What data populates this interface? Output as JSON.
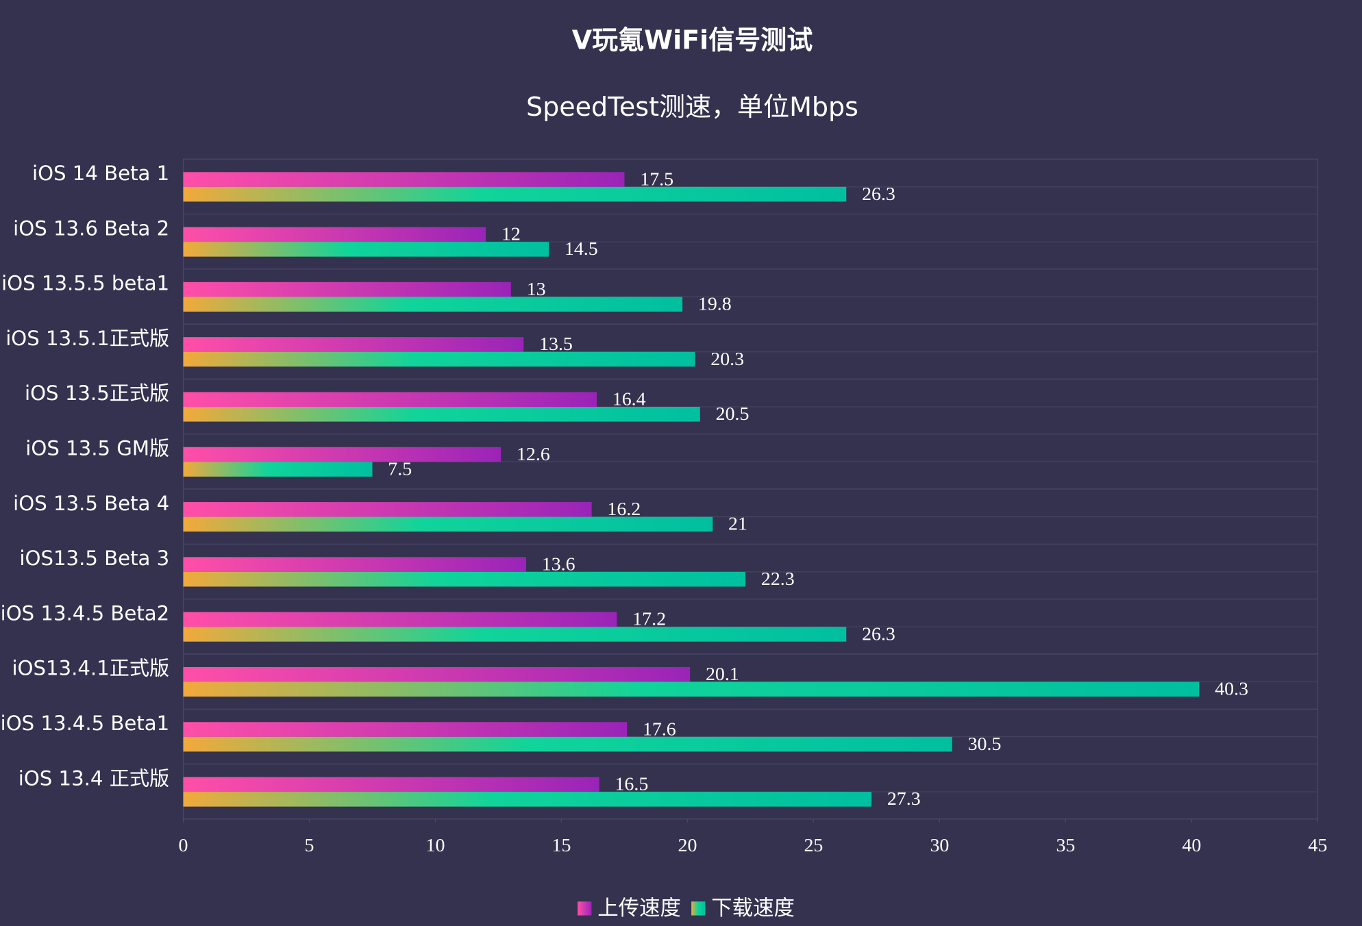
{
  "chart_data": {
    "type": "bar",
    "orientation": "horizontal",
    "title": "V玩氪WiFi信号测试",
    "subtitle": "SpeedTest测速，单位Mbps",
    "categories": [
      "iOS 14 Beta 1",
      "iOS 13.6 Beta 2",
      "iOS 13.5.5 beta1",
      "iOS 13.5.1正式版",
      "iOS 13.5正式版",
      "iOS 13.5 GM版",
      "iOS 13.5 Beta 4",
      "iOS13.5 Beta 3",
      "iOS 13.4.5 Beta2",
      "iOS13.4.1正式版",
      "iOS 13.4.5 Beta1",
      "iOS 13.4 正式版"
    ],
    "series": [
      {
        "name": "上传速度",
        "color": "#ff4fa8",
        "values": [
          17.5,
          12,
          13,
          13.5,
          16.4,
          12.6,
          16.2,
          13.6,
          17.2,
          20.1,
          17.6,
          16.5
        ]
      },
      {
        "name": "下载速度",
        "color": "#f2a93b",
        "values": [
          26.3,
          14.5,
          19.8,
          20.3,
          20.5,
          7.5,
          21,
          22.3,
          26.3,
          40.3,
          30.5,
          27.3
        ]
      }
    ],
    "xlim": [
      0,
      45
    ],
    "xticks": [
      0,
      5,
      10,
      15,
      20,
      25,
      30,
      35,
      40,
      45
    ],
    "grid": true,
    "legend": "bottom"
  }
}
